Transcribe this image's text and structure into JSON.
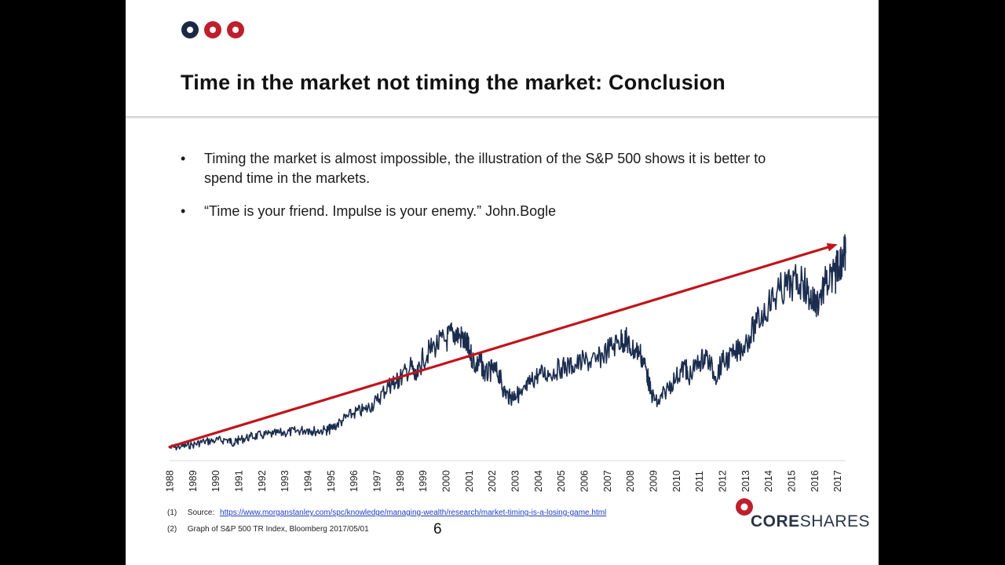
{
  "colors": {
    "accent_red": "#bf1e2d",
    "navy": "#1b2a44",
    "series_line": "#1b2d4f",
    "trend_arrow": "#c0151b"
  },
  "header": {
    "logo_dots": [
      "navy",
      "red",
      "red"
    ],
    "title": "Time in the market not timing the market: Conclusion"
  },
  "bullets": [
    {
      "marker": "•",
      "text": "Timing the market is almost impossible, the illustration of the S&P 500 shows it is better to spend time in the markets."
    },
    {
      "marker": "•",
      "text": "“Time is your friend. Impulse is your enemy.” John.Bogle"
    }
  ],
  "chart_data": {
    "type": "line",
    "title": "",
    "xlabel": "",
    "ylabel": "",
    "x_tick_labels": [
      "1988",
      "1989",
      "1990",
      "1991",
      "1992",
      "1993",
      "1994",
      "1995",
      "1996",
      "1997",
      "1998",
      "1999",
      "2000",
      "2001",
      "2002",
      "2003",
      "2004",
      "2005",
      "2006",
      "2007",
      "2008",
      "2009",
      "2010",
      "2011",
      "2012",
      "2013",
      "2014",
      "2015",
      "2016",
      "2017"
    ],
    "xlim": [
      1988.0,
      2017.35
    ],
    "ylim": [
      0,
      5000
    ],
    "y_axis_labels_shown": false,
    "grid": false,
    "legend": "none",
    "series": [
      {
        "values": [
          [
            1988.0,
            240
          ],
          [
            1988.5,
            265
          ],
          [
            1989.0,
            300
          ],
          [
            1989.5,
            360
          ],
          [
            1990.0,
            380
          ],
          [
            1990.5,
            395
          ],
          [
            1990.8,
            330
          ],
          [
            1991.0,
            390
          ],
          [
            1991.5,
            450
          ],
          [
            1992.0,
            480
          ],
          [
            1992.5,
            500
          ],
          [
            1993.0,
            530
          ],
          [
            1993.5,
            555
          ],
          [
            1994.0,
            590
          ],
          [
            1994.3,
            560
          ],
          [
            1994.8,
            575
          ],
          [
            1995.0,
            600
          ],
          [
            1995.5,
            760
          ],
          [
            1996.0,
            900
          ],
          [
            1996.5,
            960
          ],
          [
            1997.0,
            1130
          ],
          [
            1997.5,
            1420
          ],
          [
            1997.8,
            1480
          ],
          [
            1998.0,
            1550
          ],
          [
            1998.5,
            1780
          ],
          [
            1998.7,
            1520
          ],
          [
            1999.0,
            1940
          ],
          [
            1999.5,
            2170
          ],
          [
            2000.0,
            2280
          ],
          [
            2000.3,
            2420
          ],
          [
            2000.6,
            2360
          ],
          [
            2000.9,
            2200
          ],
          [
            2001.0,
            2080
          ],
          [
            2001.3,
            1800
          ],
          [
            2001.5,
            1880
          ],
          [
            2001.7,
            1620
          ],
          [
            2002.0,
            1720
          ],
          [
            2002.3,
            1650
          ],
          [
            2002.5,
            1320
          ],
          [
            2002.8,
            1180
          ],
          [
            2003.0,
            1260
          ],
          [
            2003.3,
            1240
          ],
          [
            2003.6,
            1450
          ],
          [
            2004.0,
            1630
          ],
          [
            2004.5,
            1650
          ],
          [
            2005.0,
            1760
          ],
          [
            2005.5,
            1790
          ],
          [
            2006.0,
            1880
          ],
          [
            2006.5,
            1870
          ],
          [
            2007.0,
            2080
          ],
          [
            2007.5,
            2250
          ],
          [
            2007.8,
            2300
          ],
          [
            2008.0,
            2120
          ],
          [
            2008.4,
            2060
          ],
          [
            2008.7,
            1720
          ],
          [
            2008.9,
            1270
          ],
          [
            2009.2,
            1070
          ],
          [
            2009.5,
            1300
          ],
          [
            2010.0,
            1580
          ],
          [
            2010.4,
            1790
          ],
          [
            2010.5,
            1560
          ],
          [
            2011.0,
            1870
          ],
          [
            2011.3,
            1980
          ],
          [
            2011.7,
            1590
          ],
          [
            2012.0,
            1860
          ],
          [
            2012.5,
            1990
          ],
          [
            2013.0,
            2230
          ],
          [
            2013.5,
            2600
          ],
          [
            2014.0,
            2950
          ],
          [
            2014.5,
            3210
          ],
          [
            2015.0,
            3330
          ],
          [
            2015.5,
            3400
          ],
          [
            2015.8,
            3060
          ],
          [
            2016.1,
            2980
          ],
          [
            2016.5,
            3350
          ],
          [
            2016.9,
            3480
          ],
          [
            2017.0,
            3720
          ],
          [
            2017.2,
            3850
          ],
          [
            2017.35,
            3920
          ]
        ]
      }
    ],
    "trend_arrow": {
      "from": [
        1988.0,
        260
      ],
      "to": [
        2017.0,
        4090
      ]
    }
  },
  "footnotes": [
    {
      "num": "(1)",
      "label": "Source:",
      "link": "https://www.morganstanley.com/spc/knowledge/managing-wealth/research/market-timing-is-a-losing-game.html"
    },
    {
      "num": "(2)",
      "text": "Graph of S&P 500 TR Index, Bloomberg  2017/05/01"
    }
  ],
  "page_number": "6",
  "brand": {
    "bold": "CORE",
    "regular": "SHARES"
  }
}
